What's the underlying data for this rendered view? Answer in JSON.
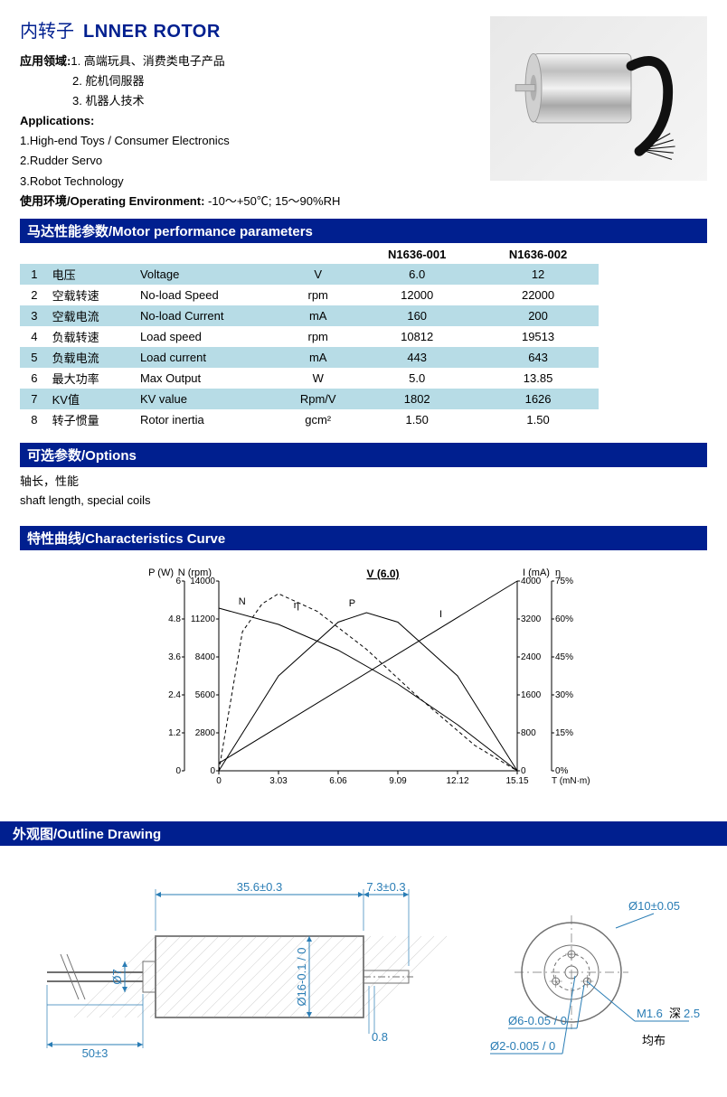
{
  "title": {
    "cn": "内转子",
    "en": "LNNER ROTOR"
  },
  "intro": {
    "apps_cn_label": "应用领域:",
    "apps_cn": [
      "1. 高端玩具、消费类电子产品",
      "2. 舵机伺服器",
      "3. 机器人技术"
    ],
    "apps_en_label": "Applications:",
    "apps_en": [
      "1.High-end Toys / Consumer Electronics",
      "2.Rudder Servo",
      "3.Robot Technology"
    ],
    "env_label": "使用环境/Operating Environment:",
    "env_value": "-10～+50℃; 15～90%RH"
  },
  "sections": {
    "params": "马达性能参数/Motor performance parameters",
    "options": "可选参数/Options",
    "curve": "特性曲线/Characteristics Curve",
    "drawing": "外观图/Outline Drawing"
  },
  "params_table": {
    "model_cols": [
      "N1636-001",
      "N1636-002"
    ],
    "rows": [
      {
        "idx": "1",
        "cn": "电压",
        "en": "Voltage",
        "unit": "V",
        "v1": "6.0",
        "v2": "12"
      },
      {
        "idx": "2",
        "cn": "空载转速",
        "en": "No-load  Speed",
        "unit": "rpm",
        "v1": "12000",
        "v2": "22000"
      },
      {
        "idx": "3",
        "cn": "空载电流",
        "en": "No-load  Current",
        "unit": "mA",
        "v1": "160",
        "v2": "200"
      },
      {
        "idx": "4",
        "cn": "负载转速",
        "en": "Load speed",
        "unit": "rpm",
        "v1": "10812",
        "v2": "19513"
      },
      {
        "idx": "5",
        "cn": "负载电流",
        "en": "Load current",
        "unit": "mA",
        "v1": "443",
        "v2": "643"
      },
      {
        "idx": "6",
        "cn": "最大功率",
        "en": "Max Output",
        "unit": "W",
        "v1": "5.0",
        "v2": "13.85"
      },
      {
        "idx": "7",
        "cn": "KV值",
        "en": "KV value",
        "unit": "Rpm/V",
        "v1": "1802",
        "v2": "1626"
      },
      {
        "idx": "8",
        "cn": "转子惯量",
        "en": "Rotor inertia",
        "unit": "gcm²",
        "v1": "1.50",
        "v2": "1.50"
      }
    ],
    "row_odd_bg": "#b7dce6",
    "row_even_bg": "#ffffff"
  },
  "options_body": {
    "cn": "轴长，性能",
    "en": "shaft length, special coils"
  },
  "curve_chart": {
    "type": "line",
    "title": "V (6.0)",
    "x_label": "T (mN·m)",
    "x_ticks": [
      0,
      3.03,
      6.06,
      9.09,
      12.12,
      15.15
    ],
    "xlim": [
      0,
      15.15
    ],
    "left_axes": [
      {
        "label": "P (W)",
        "ticks": [
          0,
          1.2,
          2.4,
          3.6,
          4.8,
          6
        ],
        "lim": [
          0,
          6
        ]
      },
      {
        "label": "N (rpm)",
        "ticks": [
          0,
          2800,
          5600,
          8400,
          11200,
          14000
        ],
        "lim": [
          0,
          14000
        ]
      }
    ],
    "right_axes": [
      {
        "label": "I (mA)",
        "ticks": [
          0,
          800,
          1600,
          2400,
          3200,
          4000
        ],
        "lim": [
          0,
          4000
        ]
      },
      {
        "label": "η",
        "ticks": [
          "0%",
          "15%",
          "30%",
          "45%",
          "60%",
          "75%"
        ],
        "lim": [
          0,
          75
        ]
      }
    ],
    "series": [
      {
        "name": "N",
        "label": "N",
        "dash": "none",
        "color": "#000",
        "points": [
          [
            0,
            12000
          ],
          [
            3.03,
            10800
          ],
          [
            6.06,
            8900
          ],
          [
            9.09,
            6400
          ],
          [
            12.12,
            3400
          ],
          [
            15.15,
            0
          ]
        ]
      },
      {
        "name": "eta",
        "label": "η",
        "dash": "4,3",
        "color": "#000",
        "points": [
          [
            0,
            0
          ],
          [
            1.2,
            55
          ],
          [
            2.2,
            66
          ],
          [
            3.03,
            70
          ],
          [
            5.0,
            63
          ],
          [
            7.5,
            48
          ],
          [
            10.0,
            30
          ],
          [
            13.0,
            10
          ],
          [
            15.15,
            0
          ]
        ]
      },
      {
        "name": "P",
        "label": "P",
        "dash": "none",
        "color": "#000",
        "points": [
          [
            0,
            0
          ],
          [
            3.03,
            3.0
          ],
          [
            6.06,
            4.7
          ],
          [
            7.5,
            5.0
          ],
          [
            9.09,
            4.7
          ],
          [
            12.12,
            3.0
          ],
          [
            15.15,
            0
          ]
        ]
      },
      {
        "name": "I",
        "label": "I",
        "dash": "none",
        "color": "#000",
        "points": [
          [
            0,
            160
          ],
          [
            15.15,
            4000
          ]
        ]
      }
    ],
    "line_width": 1,
    "background_color": "#ffffff",
    "axis_color": "#000000",
    "tick_fontsize": 10,
    "label_fontsize": 11
  },
  "outline_drawing": {
    "type": "engineering-drawing",
    "dim_color": "#2a7db5",
    "line_color": "#707070",
    "line_width": 1,
    "fontsize": 13,
    "side_view": {
      "body_length": "35.6±0.3",
      "body_diameter": "Ø16-0.1 / 0",
      "shaft_ext": "7.3±0.3",
      "shaft_step": "0.8",
      "lead_length": "50±3",
      "back_boss": "Ø7"
    },
    "front_view": {
      "outer_circle": "Ø10±0.05",
      "bolt_circle": "Ø6-0.05 / 0",
      "shaft_circle": "Ø2-0.005 / 0",
      "thread": "M1.6",
      "thread_depth_label": "深",
      "thread_depth": "2.5",
      "note": "均布"
    }
  },
  "colors": {
    "brand_blue": "#001f8f",
    "table_odd": "#b7dce6",
    "dim_blue": "#2a7db5"
  }
}
